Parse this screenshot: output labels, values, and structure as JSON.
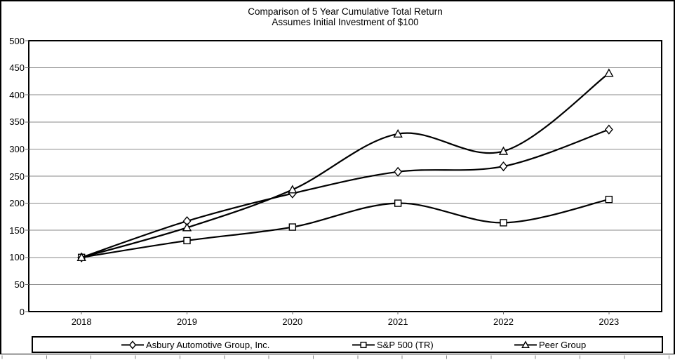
{
  "chart_data": {
    "type": "line",
    "title": "Comparison of 5 Year Cumulative Total Return",
    "subtitle": "Assumes Initial Investment of $100",
    "categories": [
      "2018",
      "2019",
      "2020",
      "2021",
      "2022",
      "2023"
    ],
    "series": [
      {
        "name": "Asbury Automotive Group, Inc.",
        "marker": "diamond",
        "values": [
          100,
          167,
          218,
          258,
          268,
          336
        ]
      },
      {
        "name": "S&P 500 (TR)",
        "marker": "square",
        "values": [
          100,
          131,
          156,
          200,
          164,
          207
        ]
      },
      {
        "name": "Peer Group",
        "marker": "triangle",
        "values": [
          100,
          155,
          225,
          328,
          296,
          440
        ]
      }
    ],
    "xlabel": "",
    "ylabel": "",
    "ylim": [
      0,
      500
    ],
    "ytick_step": 50,
    "grid": true,
    "legend_position": "bottom",
    "colors": {
      "line": "#000000",
      "grid": "#8a8a8a",
      "frame": "#000000",
      "marker_fill": "#ffffff",
      "tick": "#666666",
      "text": "#000000"
    }
  }
}
